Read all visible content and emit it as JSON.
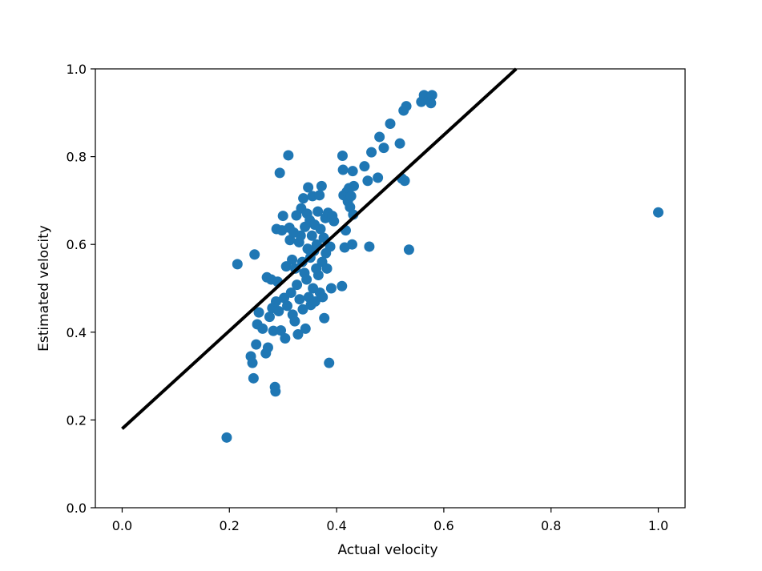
{
  "chart_data": {
    "type": "scatter",
    "title": "",
    "xlabel": "Actual velocity",
    "ylabel": "Estimated velocity",
    "xlim": [
      -0.05,
      1.05
    ],
    "ylim": [
      0.0,
      1.0
    ],
    "xticks": [
      "0.0",
      "0.2",
      "0.4",
      "0.6",
      "0.8",
      "1.0"
    ],
    "yticks": [
      "0.0",
      "0.2",
      "0.4",
      "0.6",
      "0.8",
      "1.0"
    ],
    "grid": false,
    "legend": "none",
    "point_color": "#1f77b4",
    "line_color": "#000000",
    "fit_line": {
      "x": [
        0.0,
        0.735
      ],
      "y": [
        0.18,
        1.0
      ]
    },
    "points": [
      [
        0.195,
        0.16
      ],
      [
        0.215,
        0.555
      ],
      [
        0.24,
        0.345
      ],
      [
        0.243,
        0.33
      ],
      [
        0.245,
        0.295
      ],
      [
        0.247,
        0.577
      ],
      [
        0.25,
        0.372
      ],
      [
        0.252,
        0.418
      ],
      [
        0.255,
        0.445
      ],
      [
        0.262,
        0.408
      ],
      [
        0.268,
        0.352
      ],
      [
        0.27,
        0.525
      ],
      [
        0.272,
        0.365
      ],
      [
        0.275,
        0.435
      ],
      [
        0.278,
        0.52
      ],
      [
        0.28,
        0.455
      ],
      [
        0.282,
        0.403
      ],
      [
        0.285,
        0.275
      ],
      [
        0.286,
        0.265
      ],
      [
        0.287,
        0.47
      ],
      [
        0.288,
        0.635
      ],
      [
        0.29,
        0.515
      ],
      [
        0.292,
        0.448
      ],
      [
        0.294,
        0.763
      ],
      [
        0.296,
        0.404
      ],
      [
        0.298,
        0.632
      ],
      [
        0.3,
        0.665
      ],
      [
        0.302,
        0.478
      ],
      [
        0.304,
        0.386
      ],
      [
        0.306,
        0.55
      ],
      [
        0.308,
        0.46
      ],
      [
        0.31,
        0.803
      ],
      [
        0.312,
        0.638
      ],
      [
        0.313,
        0.61
      ],
      [
        0.315,
        0.49
      ],
      [
        0.317,
        0.565
      ],
      [
        0.318,
        0.44
      ],
      [
        0.32,
        0.627
      ],
      [
        0.322,
        0.425
      ],
      [
        0.323,
        0.545
      ],
      [
        0.325,
        0.666
      ],
      [
        0.326,
        0.508
      ],
      [
        0.328,
        0.395
      ],
      [
        0.33,
        0.605
      ],
      [
        0.331,
        0.475
      ],
      [
        0.333,
        0.62
      ],
      [
        0.334,
        0.682
      ],
      [
        0.336,
        0.56
      ],
      [
        0.337,
        0.452
      ],
      [
        0.338,
        0.705
      ],
      [
        0.34,
        0.535
      ],
      [
        0.341,
        0.64
      ],
      [
        0.342,
        0.408
      ],
      [
        0.344,
        0.52
      ],
      [
        0.345,
        0.67
      ],
      [
        0.346,
        0.59
      ],
      [
        0.347,
        0.73
      ],
      [
        0.348,
        0.48
      ],
      [
        0.35,
        0.655
      ],
      [
        0.351,
        0.57
      ],
      [
        0.352,
        0.462
      ],
      [
        0.354,
        0.62
      ],
      [
        0.355,
        0.71
      ],
      [
        0.356,
        0.5
      ],
      [
        0.358,
        0.585
      ],
      [
        0.359,
        0.645
      ],
      [
        0.36,
        0.47
      ],
      [
        0.362,
        0.545
      ],
      [
        0.363,
        0.6
      ],
      [
        0.365,
        0.675
      ],
      [
        0.366,
        0.53
      ],
      [
        0.368,
        0.712
      ],
      [
        0.369,
        0.49
      ],
      [
        0.37,
        0.635
      ],
      [
        0.372,
        0.733
      ],
      [
        0.373,
        0.56
      ],
      [
        0.374,
        0.48
      ],
      [
        0.376,
        0.615
      ],
      [
        0.377,
        0.432
      ],
      [
        0.379,
        0.66
      ],
      [
        0.38,
        0.58
      ],
      [
        0.382,
        0.545
      ],
      [
        0.384,
        0.672
      ],
      [
        0.386,
        0.33
      ],
      [
        0.388,
        0.595
      ],
      [
        0.39,
        0.5
      ],
      [
        0.392,
        0.665
      ],
      [
        0.395,
        0.653
      ],
      [
        0.41,
        0.505
      ],
      [
        0.411,
        0.802
      ],
      [
        0.412,
        0.77
      ],
      [
        0.413,
        0.712
      ],
      [
        0.415,
        0.593
      ],
      [
        0.417,
        0.632
      ],
      [
        0.419,
        0.72
      ],
      [
        0.421,
        0.698
      ],
      [
        0.423,
        0.728
      ],
      [
        0.425,
        0.685
      ],
      [
        0.427,
        0.71
      ],
      [
        0.429,
        0.6
      ],
      [
        0.43,
        0.767
      ],
      [
        0.431,
        0.668
      ],
      [
        0.432,
        0.733
      ],
      [
        0.452,
        0.778
      ],
      [
        0.458,
        0.745
      ],
      [
        0.461,
        0.595
      ],
      [
        0.465,
        0.81
      ],
      [
        0.477,
        0.752
      ],
      [
        0.48,
        0.845
      ],
      [
        0.488,
        0.82
      ],
      [
        0.5,
        0.875
      ],
      [
        0.518,
        0.83
      ],
      [
        0.522,
        0.75
      ],
      [
        0.525,
        0.905
      ],
      [
        0.527,
        0.745
      ],
      [
        0.53,
        0.915
      ],
      [
        0.535,
        0.588
      ],
      [
        0.558,
        0.925
      ],
      [
        0.563,
        0.94
      ],
      [
        0.572,
        0.93
      ],
      [
        0.576,
        0.922
      ],
      [
        0.578,
        0.94
      ],
      [
        1.0,
        0.673
      ]
    ]
  }
}
